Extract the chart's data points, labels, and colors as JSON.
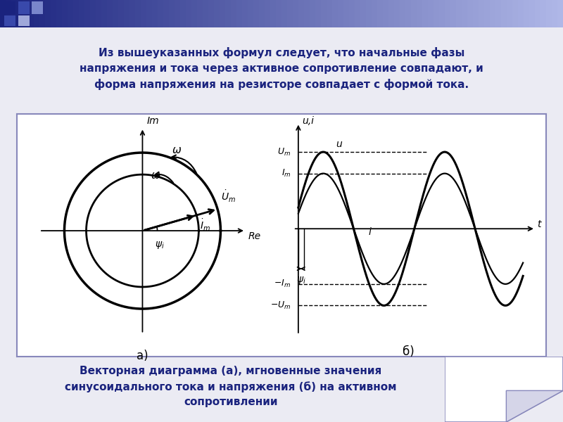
{
  "title_text": "Из вышеуказанных формул следует, что начальные фазы\nнапряжения и тока через активное сопротивление совпадают, и\nформа напряжения на резисторе совпадает с формой тока.",
  "caption_text": "Векторная диаграмма (а), мгновенные значения\nсинусоидального тока и напряжения (б) на активном\nсопротивлении",
  "bg_color": "#ebebf3",
  "panel_bg": "#ffffff",
  "panel_border": "#8888bb",
  "text_color": "#1a237e",
  "label_a": "а)",
  "label_b": "б)",
  "psi_i": 0.28,
  "Um": 1.0,
  "Im": 0.72,
  "title_fontsize": 11,
  "caption_fontsize": 11
}
